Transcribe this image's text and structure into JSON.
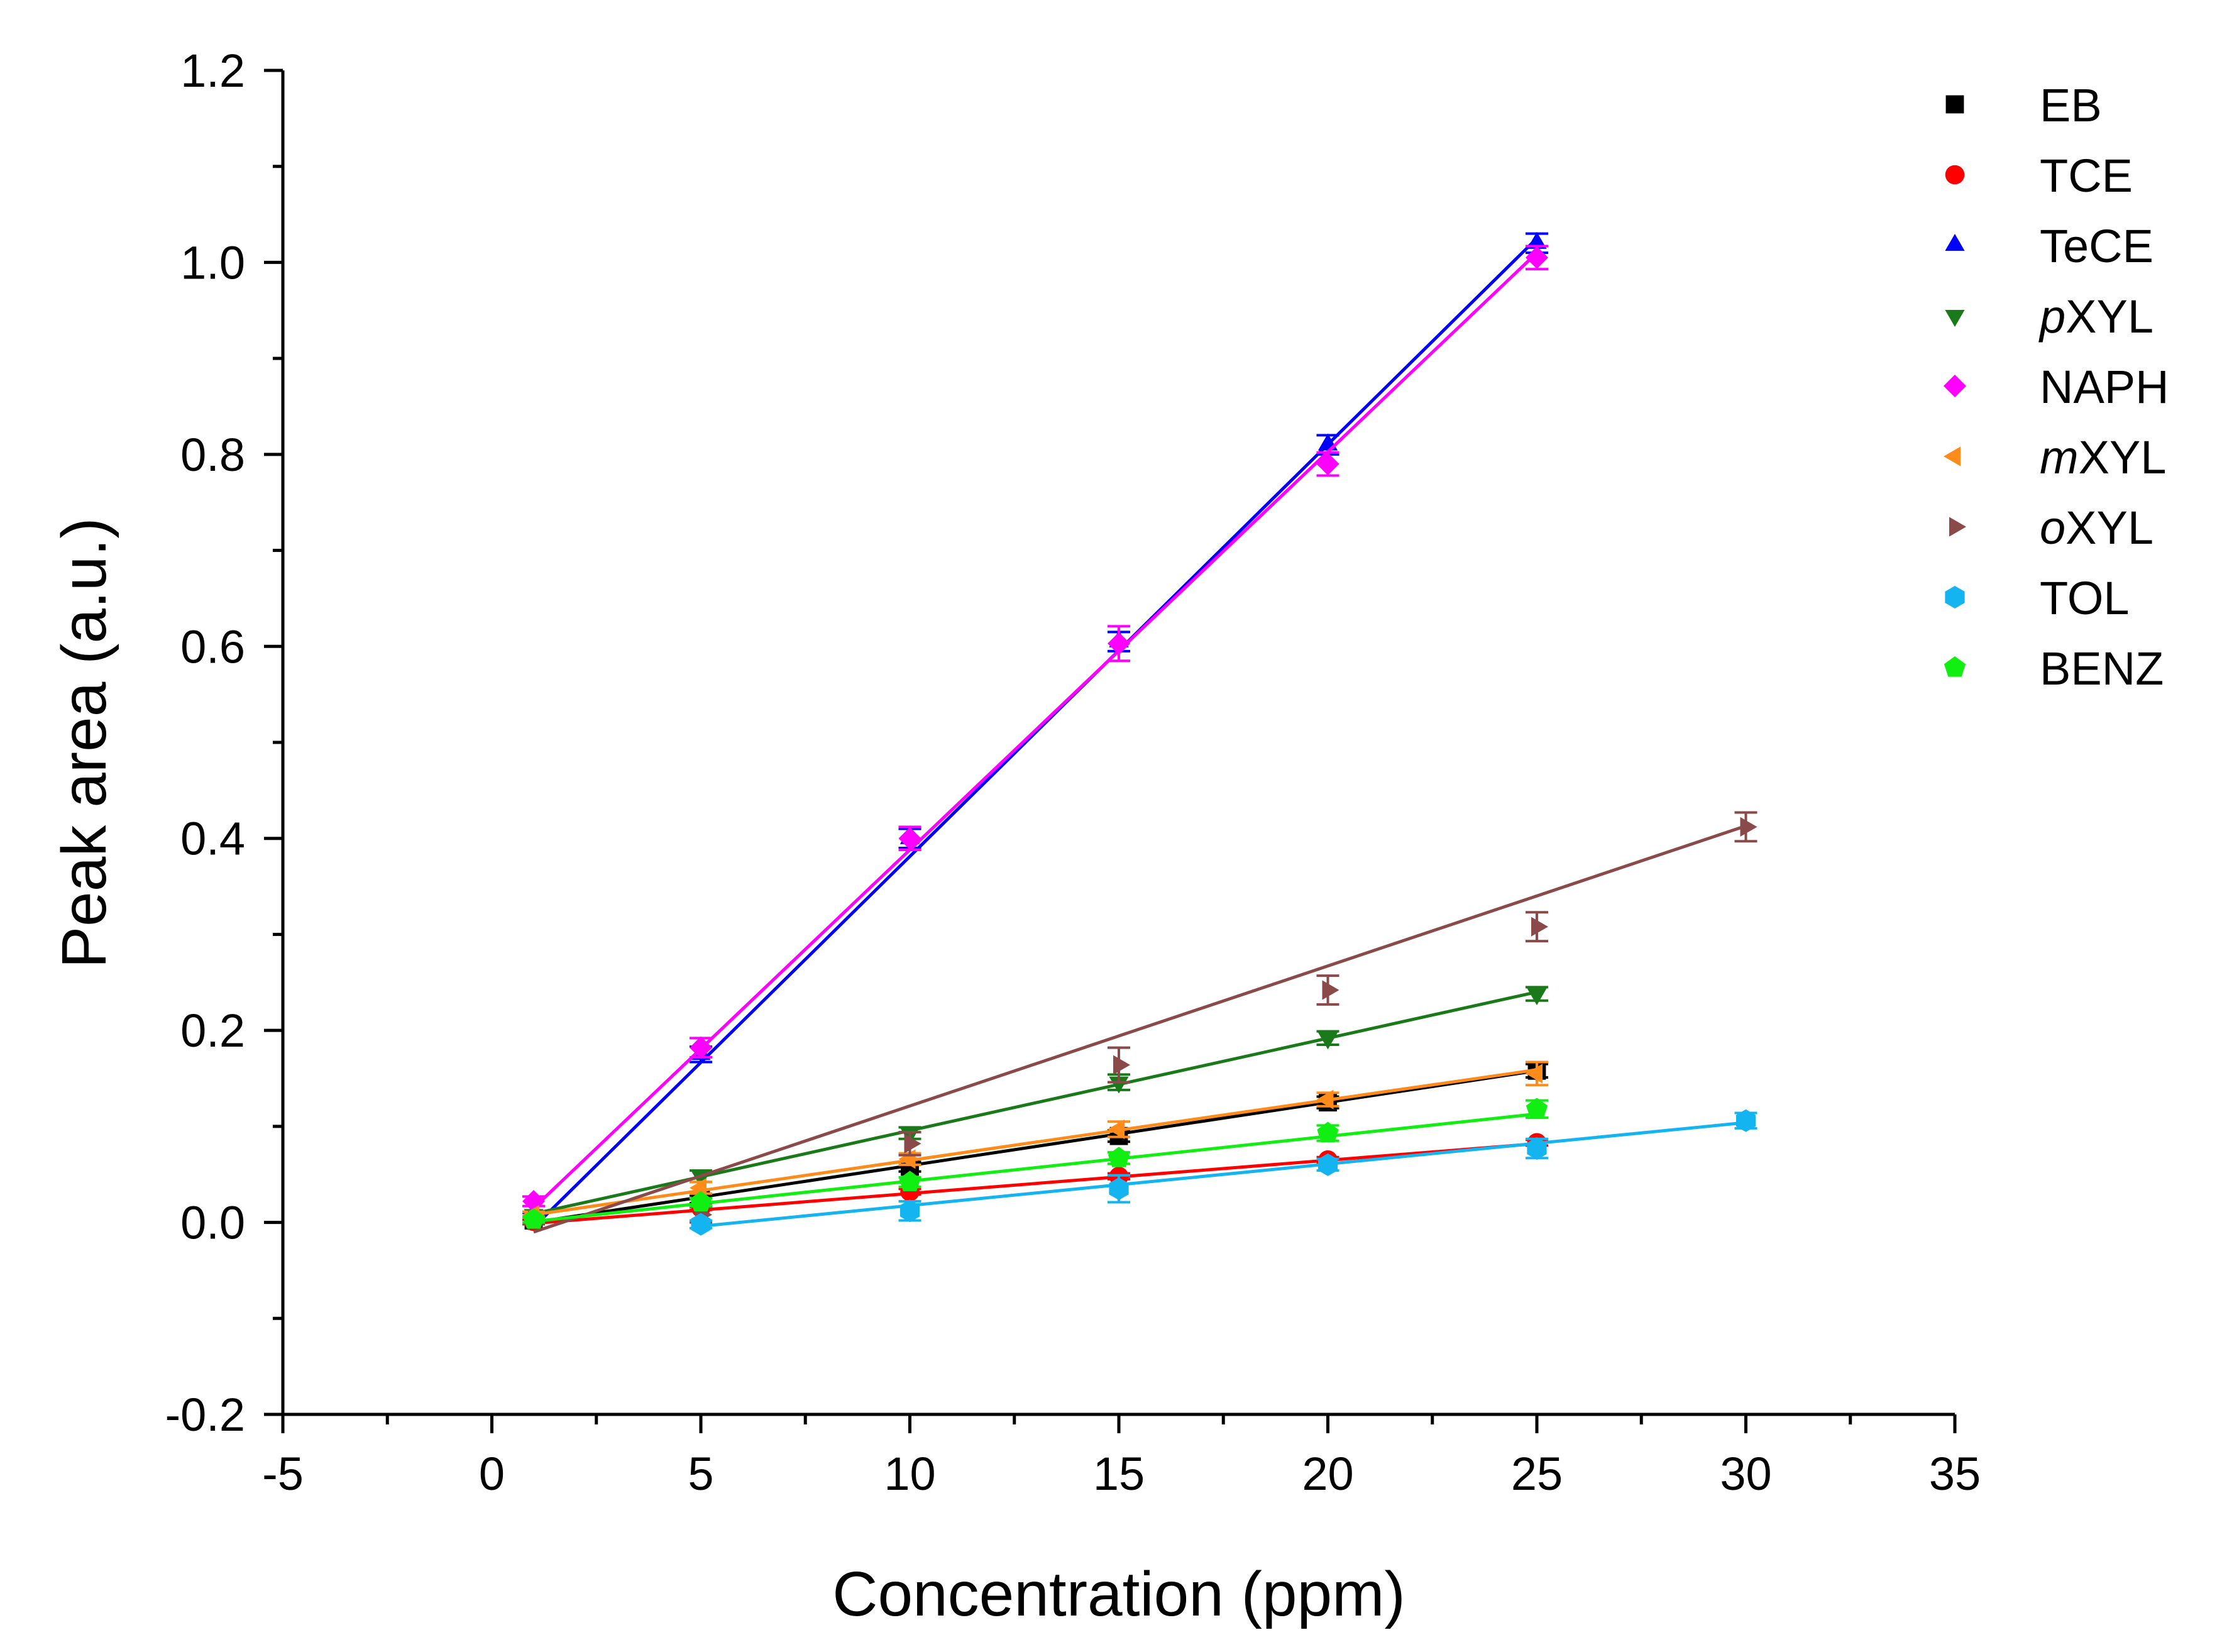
{
  "chart_data": {
    "type": "line",
    "xlabel": "Concentration (ppm)",
    "ylabel": "Peak area (a.u.)",
    "xlim": [
      -5,
      35
    ],
    "ylim": [
      -0.2,
      1.2
    ],
    "x_ticks": [
      "-5",
      "0",
      "5",
      "10",
      "15",
      "20",
      "25",
      "30",
      "35"
    ],
    "x_tick_values": [
      -5,
      0,
      5,
      10,
      15,
      20,
      25,
      30,
      35
    ],
    "y_ticks": [
      "-0.2",
      "0.0",
      "0.2",
      "0.4",
      "0.6",
      "0.8",
      "1.0",
      "1.2"
    ],
    "y_tick_values": [
      -0.2,
      0.0,
      0.2,
      0.4,
      0.6,
      0.8,
      1.0,
      1.2
    ],
    "legend_position": "top-right",
    "series": [
      {
        "name": "EB",
        "prefix": "",
        "suffix": "EB",
        "color": "#000000",
        "marker": "square",
        "x": [
          1,
          5,
          10,
          15,
          20,
          25
        ],
        "y": [
          0.002,
          0.024,
          0.058,
          0.09,
          0.125,
          0.158
        ],
        "err": [
          0.003,
          0.004,
          0.005,
          0.006,
          0.006,
          0.007
        ],
        "fit": [
          0.0,
          0.158
        ]
      },
      {
        "name": "TCE",
        "prefix": "",
        "suffix": "TCE",
        "color": "#ff0000",
        "marker": "circle",
        "x": [
          1,
          5,
          10,
          15,
          20,
          25
        ],
        "y": [
          0.001,
          0.015,
          0.032,
          0.048,
          0.065,
          0.083
        ],
        "err": [
          0.002,
          0.002,
          0.003,
          0.003,
          0.003,
          0.003
        ],
        "fit": [
          -0.001,
          0.082
        ]
      },
      {
        "name": "TeCE",
        "prefix": "",
        "suffix": "TeCE",
        "color": "#0000ff",
        "marker": "triangle-up",
        "x": [
          1,
          5,
          10,
          15,
          20,
          25
        ],
        "y": [
          0.005,
          0.175,
          0.4,
          0.605,
          0.81,
          1.02
        ],
        "err": [
          0.005,
          0.008,
          0.01,
          0.01,
          0.01,
          0.01
        ],
        "fit": [
          -0.005,
          1.025
        ]
      },
      {
        "name": "pXYL",
        "prefix": "p",
        "suffix": "XYL",
        "color": "#1a7a1a",
        "marker": "triangle-down",
        "x": [
          1,
          5,
          10,
          15,
          20,
          25
        ],
        "y": [
          0.008,
          0.048,
          0.093,
          0.146,
          0.192,
          0.238
        ],
        "err": [
          0.003,
          0.006,
          0.006,
          0.008,
          0.007,
          0.007
        ],
        "fit": [
          0.009,
          0.24
        ]
      },
      {
        "name": "NAPH",
        "prefix": "",
        "suffix": "NAPH",
        "color": "#ff00ff",
        "marker": "diamond",
        "x": [
          1,
          5,
          10,
          15,
          20,
          25
        ],
        "y": [
          0.022,
          0.182,
          0.4,
          0.603,
          0.79,
          1.005
        ],
        "err": [
          0.005,
          0.01,
          0.012,
          0.018,
          0.012,
          0.012
        ],
        "fit": [
          0.015,
          1.01
        ]
      },
      {
        "name": "mXYL",
        "prefix": "m",
        "suffix": "XYL",
        "color": "#ff8c1a",
        "marker": "triangle-left",
        "x": [
          1,
          5,
          10,
          15,
          20,
          25
        ],
        "y": [
          0.008,
          0.036,
          0.066,
          0.097,
          0.128,
          0.155
        ],
        "err": [
          0.003,
          0.006,
          0.006,
          0.008,
          0.007,
          0.012
        ],
        "fit": [
          0.008,
          0.159
        ]
      },
      {
        "name": "oXYL",
        "prefix": "o",
        "suffix": "XYL",
        "color": "#8b4a4a",
        "marker": "triangle-right",
        "x": [
          1,
          5,
          10,
          15,
          20,
          25,
          30
        ],
        "y": [
          0.002,
          0.008,
          0.082,
          0.164,
          0.242,
          0.308,
          0.412
        ],
        "err": [
          0.004,
          0.008,
          0.012,
          0.018,
          0.015,
          0.015,
          0.015
        ],
        "fit": [
          -0.01,
          0.413
        ]
      },
      {
        "name": "TOL",
        "prefix": "",
        "suffix": "TOL",
        "color": "#14b4f0",
        "marker": "hexagon",
        "x": [
          5,
          10,
          15,
          20,
          25,
          30
        ],
        "y": [
          -0.002,
          0.012,
          0.035,
          0.06,
          0.077,
          0.106
        ],
        "err": [
          0.004,
          0.01,
          0.014,
          0.006,
          0.01,
          0.008
        ],
        "fit": [
          -0.004,
          0.104
        ]
      },
      {
        "name": "BENZ",
        "prefix": "",
        "suffix": "BENZ",
        "color": "#11ee11",
        "marker": "pentagon",
        "x": [
          1,
          5,
          10,
          15,
          20,
          25
        ],
        "y": [
          0.003,
          0.021,
          0.042,
          0.067,
          0.093,
          0.118
        ],
        "err": [
          0.003,
          0.004,
          0.005,
          0.006,
          0.008,
          0.009
        ],
        "fit": [
          0.001,
          0.113
        ]
      }
    ]
  }
}
